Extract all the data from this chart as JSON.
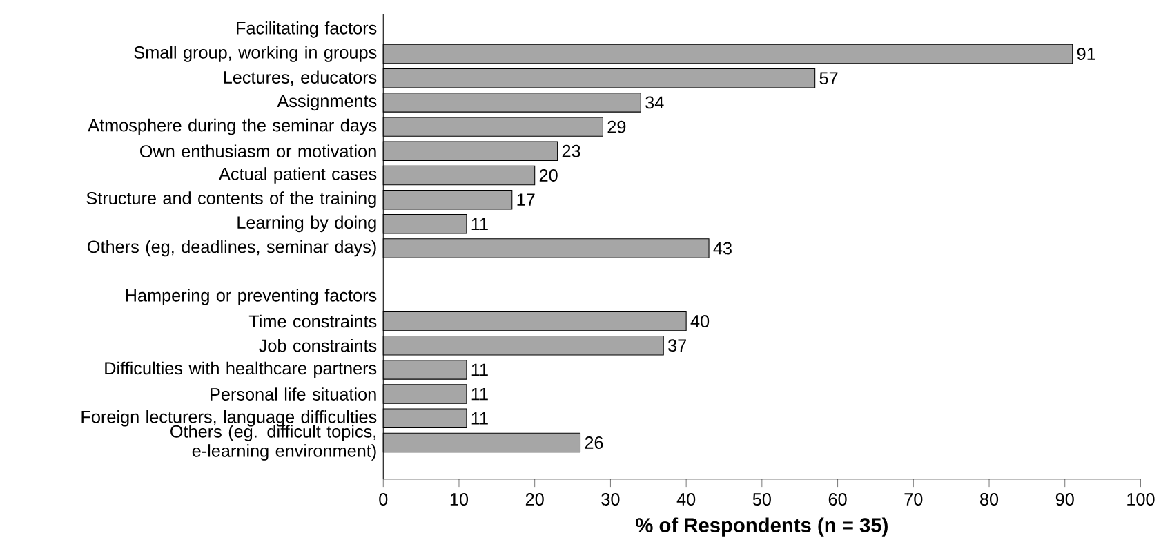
{
  "chart_data": {
    "type": "bar",
    "orientation": "horizontal",
    "categories": [
      "Facilitating factors",
      "Small group, working in groups",
      "Lectures, educators",
      "Assignments",
      "Atmosphere during the seminar days",
      "Own enthusiasm or motivation",
      "Actual patient cases",
      "Structure and contents of the training",
      "Learning by doing",
      "Others (eg, deadlines, seminar days)",
      null,
      "Hampering or preventing factors",
      "Time constraints",
      "Job constraints",
      "Difficulties with healthcare partners",
      "Personal life situation",
      "Foreign lecturers, language difficulties",
      "Others (eg. difficult topics, e-learning environment)"
    ],
    "values": [
      null,
      91,
      57,
      34,
      29,
      23,
      20,
      17,
      11,
      43,
      null,
      null,
      40,
      37,
      11,
      11,
      11,
      26
    ],
    "color": "#a6a6a6",
    "xlabel": "% of Respondents (n = 35)",
    "xlim": [
      0,
      100
    ],
    "xticks": [
      0,
      10,
      20,
      30,
      40,
      50,
      60,
      70,
      80,
      90,
      100
    ],
    "data_labels": true
  }
}
